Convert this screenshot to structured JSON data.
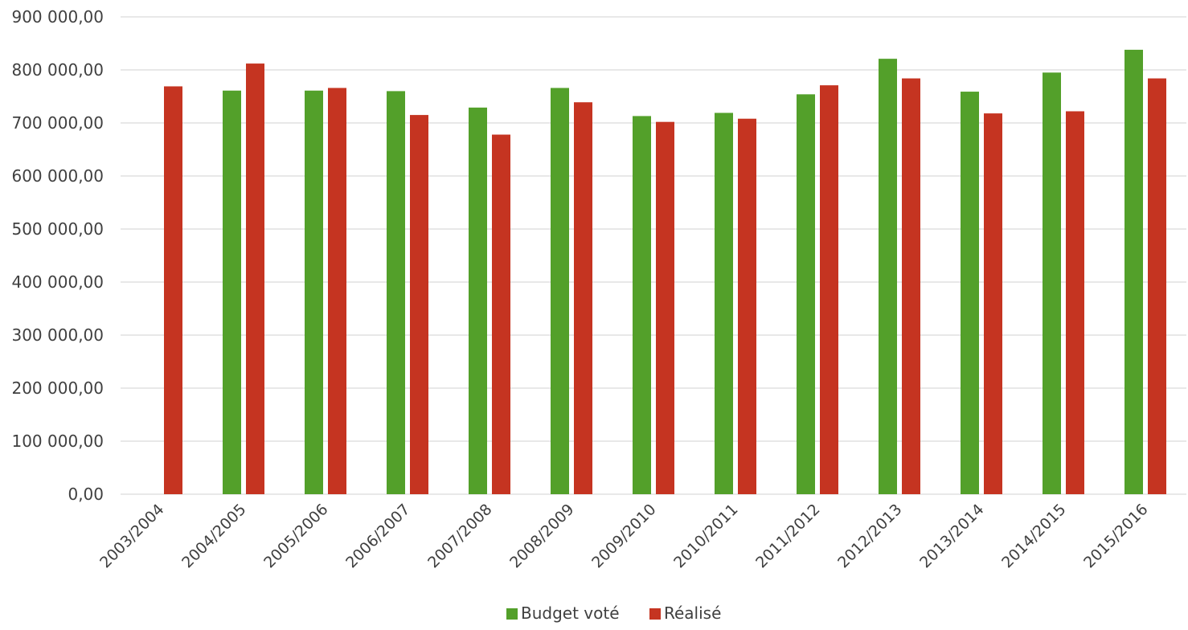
{
  "chart_data": {
    "type": "bar",
    "categories": [
      "2003/2004",
      "2004/2005",
      "2005/2006",
      "2006/2007",
      "2007/2008",
      "2008/2009",
      "2009/2010",
      "2010/2011",
      "2011/2012",
      "2012/2013",
      "2013/2014",
      "2014/2015",
      "2015/2016"
    ],
    "series": [
      {
        "name": "Budget voté",
        "color": "#53a02a",
        "values": [
          null,
          761000,
          761000,
          760000,
          729000,
          766000,
          713000,
          719000,
          754000,
          821000,
          759000,
          795000,
          838000
        ]
      },
      {
        "name": "Réalisé",
        "color": "#c53421",
        "values": [
          769000,
          812000,
          766000,
          715000,
          678000,
          739000,
          702000,
          708000,
          771000,
          784000,
          718000,
          722000,
          784000
        ]
      }
    ],
    "ylim": [
      0,
      900000
    ],
    "yticks": [
      0,
      100000,
      200000,
      300000,
      400000,
      500000,
      600000,
      700000,
      800000,
      900000
    ],
    "ytick_labels": [
      "0,00",
      "100 000,00",
      "200 000,00",
      "300 000,00",
      "400 000,00",
      "500 000,00",
      "600 000,00",
      "700 000,00",
      "800 000,00",
      "900 000,00"
    ],
    "title": "",
    "xlabel": "",
    "ylabel": "",
    "grid": true,
    "legend_position": "bottom-center",
    "gridline_color": "#d9d9d9"
  }
}
